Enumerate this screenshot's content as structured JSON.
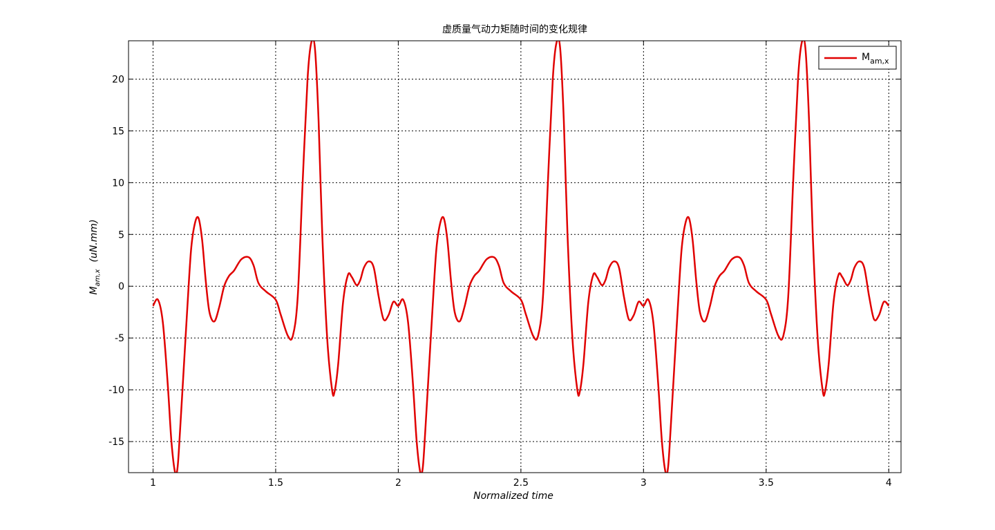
{
  "chart_data": {
    "type": "line",
    "title": "虚质量气动力矩随时间的变化规律",
    "xlabel": "Normalized time",
    "ylabel": {
      "main": "M",
      "sub": "am,x",
      "unit": "(uN.mm)"
    },
    "xlim": [
      0.9,
      4.05
    ],
    "ylim": [
      -18,
      23.7
    ],
    "xticks": [
      1,
      1.5,
      2,
      2.5,
      3,
      3.5,
      4
    ],
    "xtick_labels": [
      "1",
      "1.5",
      "2",
      "2.5",
      "3",
      "3.5",
      "4"
    ],
    "yticks": [
      -15,
      -10,
      -5,
      0,
      5,
      10,
      15,
      20
    ],
    "ytick_labels": [
      "-15",
      "-10",
      "-5",
      "0",
      "5",
      "10",
      "15",
      "20"
    ],
    "grid": true,
    "legend_position": "top-right",
    "series": [
      {
        "name": "M",
        "name_sub": "am,x",
        "color": "#e00000",
        "period": 1,
        "one_period": {
          "x": [
            1.0,
            1.02,
            1.04,
            1.06,
            1.075,
            1.09,
            1.1,
            1.11,
            1.125,
            1.14,
            1.155,
            1.17,
            1.185,
            1.2,
            1.215,
            1.23,
            1.25,
            1.27,
            1.29,
            1.31,
            1.33,
            1.36,
            1.39,
            1.41,
            1.43,
            1.46,
            1.5,
            1.52,
            1.55,
            1.57,
            1.59,
            1.61,
            1.63,
            1.645,
            1.66,
            1.675,
            1.69,
            1.71,
            1.73,
            1.74,
            1.755,
            1.775,
            1.795,
            1.81,
            1.83,
            1.845,
            1.86,
            1.88,
            1.9,
            1.92,
            1.94,
            1.96,
            1.98,
            2.0
          ],
          "y": [
            -1.9,
            -1.3,
            -3.5,
            -9.5,
            -15,
            -18,
            -17.5,
            -14,
            -8,
            -2,
            3.5,
            6.0,
            6.6,
            4.5,
            0.5,
            -2.5,
            -3.4,
            -2.0,
            0.0,
            1.0,
            1.5,
            2.6,
            2.8,
            2.0,
            0.3,
            -0.5,
            -1.3,
            -2.7,
            -4.8,
            -4.8,
            -1.0,
            10.0,
            20.0,
            23.5,
            23.0,
            16.0,
            5.0,
            -5.0,
            -10.0,
            -10.2,
            -7.5,
            -1.5,
            1.1,
            0.9,
            0.1,
            0.6,
            1.8,
            2.4,
            1.8,
            -1.0,
            -3.2,
            -2.8,
            -1.5,
            -1.9
          ]
        }
      }
    ]
  }
}
